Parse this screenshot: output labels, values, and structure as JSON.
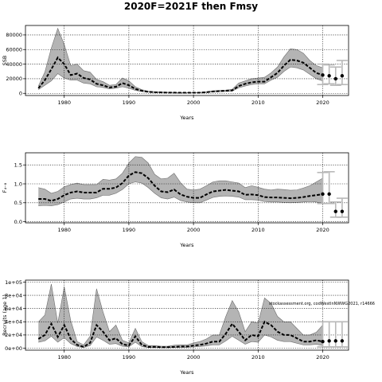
{
  "figure": {
    "title": "2020F=2021F then Fmsy",
    "annotation": "stockassessment.org, codWestlnNWWG2021, r14666"
  },
  "chart_data": [
    {
      "type": "line",
      "name": "ssb",
      "title": "",
      "xlabel": "Years",
      "ylabel": "SSB",
      "xlim": [
        1974,
        2024
      ],
      "ylim": [
        -3000,
        93000
      ],
      "xticks": [
        1980,
        1990,
        2000,
        2010,
        2020
      ],
      "yticks": [
        0,
        20000,
        40000,
        60000,
        80000
      ],
      "ytick_labels": [
        "0",
        "20000",
        "40000",
        "60000",
        "80000"
      ],
      "grid": "dotted",
      "x": [
        1976,
        1977,
        1978,
        1979,
        1980,
        1981,
        1982,
        1983,
        1984,
        1985,
        1986,
        1987,
        1988,
        1989,
        1990,
        1991,
        1992,
        1993,
        1994,
        1995,
        1996,
        1997,
        1998,
        1999,
        2000,
        2001,
        2002,
        2003,
        2004,
        2005,
        2006,
        2007,
        2008,
        2009,
        2010,
        2011,
        2012,
        2013,
        2014,
        2015,
        2016,
        2017,
        2018,
        2019,
        2020
      ],
      "estimate": [
        7000,
        18000,
        33000,
        49000,
        40000,
        25000,
        27000,
        21000,
        19000,
        13000,
        11000,
        8000,
        9000,
        14000,
        11000,
        6000,
        3500,
        2000,
        1500,
        1200,
        1000,
        900,
        800,
        800,
        800,
        900,
        1500,
        2500,
        3000,
        3500,
        4000,
        10000,
        13000,
        15000,
        16000,
        16000,
        22000,
        28000,
        38000,
        46000,
        45000,
        42000,
        35000,
        28000,
        25000
      ],
      "lower": [
        5000,
        11000,
        17000,
        27000,
        21000,
        18000,
        18000,
        14000,
        13000,
        9000,
        8000,
        6000,
        7000,
        9000,
        7000,
        4000,
        2500,
        1500,
        1000,
        900,
        800,
        700,
        700,
        700,
        700,
        700,
        1200,
        1800,
        2200,
        2500,
        3000,
        7500,
        10000,
        12000,
        13000,
        13000,
        18000,
        22000,
        30000,
        36000,
        35000,
        32000,
        26000,
        20000,
        17000
      ],
      "upper": [
        10000,
        29000,
        62000,
        89000,
        67000,
        38000,
        40000,
        31000,
        29000,
        19000,
        16000,
        11000,
        12000,
        21000,
        17000,
        9000,
        5000,
        3000,
        2300,
        1800,
        1500,
        1300,
        1100,
        1100,
        1100,
        1200,
        2000,
        3500,
        4000,
        4500,
        5500,
        14000,
        17000,
        20000,
        21000,
        22000,
        28000,
        36000,
        50000,
        61000,
        60000,
        55000,
        45000,
        38000,
        35000
      ],
      "forecast": {
        "years": [
          2021,
          2022,
          2023
        ],
        "median": [
          24000,
          20000,
          24000
        ],
        "lower": [
          13000,
          11000,
          12000
        ],
        "upper": [
          39000,
          36000,
          45000
        ]
      },
      "intervals": [
        {
          "x": 2020,
          "low": 12000,
          "high": 40000
        },
        {
          "x": 2021,
          "low": 13000,
          "high": 39000
        },
        {
          "x": 2022,
          "low": 11000,
          "high": 36000
        },
        {
          "x": 2023,
          "low": 12000,
          "high": 45000
        }
      ]
    },
    {
      "type": "line",
      "name": "fbar",
      "title": "",
      "xlabel": "Years",
      "ylabel": "F₄₋₈",
      "xlim": [
        1974,
        2024
      ],
      "ylim": [
        -0.03,
        1.82
      ],
      "xticks": [
        1980,
        1990,
        2000,
        2010,
        2020
      ],
      "yticks": [
        0,
        0.5,
        1.0,
        1.5
      ],
      "ytick_labels": [
        "0.0",
        "0.5",
        "1.0",
        "1.5"
      ],
      "grid": "dotted",
      "x": [
        1976,
        1977,
        1978,
        1979,
        1980,
        1981,
        1982,
        1983,
        1984,
        1985,
        1986,
        1987,
        1988,
        1989,
        1990,
        1991,
        1992,
        1993,
        1994,
        1995,
        1996,
        1997,
        1998,
        1999,
        2000,
        2001,
        2002,
        2003,
        2004,
        2005,
        2006,
        2007,
        2008,
        2009,
        2010,
        2011,
        2012,
        2013,
        2014,
        2015,
        2016,
        2017,
        2018,
        2019,
        2020
      ],
      "estimate": [
        0.6,
        0.6,
        0.55,
        0.6,
        0.7,
        0.77,
        0.8,
        0.77,
        0.77,
        0.77,
        0.87,
        0.87,
        0.9,
        1.02,
        1.22,
        1.31,
        1.28,
        1.15,
        0.95,
        0.8,
        0.78,
        0.85,
        0.72,
        0.66,
        0.63,
        0.63,
        0.72,
        0.8,
        0.82,
        0.84,
        0.82,
        0.8,
        0.71,
        0.72,
        0.7,
        0.65,
        0.64,
        0.64,
        0.63,
        0.62,
        0.63,
        0.65,
        0.68,
        0.7,
        0.73
      ],
      "lower": [
        0.42,
        0.43,
        0.42,
        0.45,
        0.52,
        0.6,
        0.62,
        0.6,
        0.6,
        0.63,
        0.7,
        0.7,
        0.75,
        0.85,
        1.0,
        1.05,
        1.02,
        0.9,
        0.75,
        0.63,
        0.6,
        0.65,
        0.56,
        0.52,
        0.5,
        0.5,
        0.57,
        0.64,
        0.67,
        0.68,
        0.67,
        0.65,
        0.58,
        0.58,
        0.57,
        0.53,
        0.52,
        0.52,
        0.51,
        0.5,
        0.51,
        0.52,
        0.53,
        0.52,
        0.48
      ],
      "upper": [
        0.9,
        0.86,
        0.75,
        0.8,
        0.92,
        0.98,
        1.02,
        0.98,
        0.98,
        0.98,
        1.12,
        1.1,
        1.13,
        1.28,
        1.55,
        1.72,
        1.7,
        1.55,
        1.25,
        1.13,
        1.15,
        1.28,
        1.03,
        0.86,
        0.84,
        0.86,
        0.95,
        1.05,
        1.08,
        1.08,
        1.05,
        1.02,
        0.9,
        0.95,
        0.91,
        0.86,
        0.84,
        0.86,
        0.85,
        0.83,
        0.84,
        0.89,
        0.95,
        1.05,
        1.15
      ],
      "forecast": {
        "years": [
          2021,
          2022,
          2023
        ],
        "median": [
          0.73,
          0.27,
          0.27
        ],
        "lower": [
          0.48,
          0.12,
          0.12
        ],
        "upper": [
          1.32,
          0.52,
          0.62
        ]
      },
      "intervals": [
        {
          "x": 2020,
          "low": 0.48,
          "high": 1.3
        },
        {
          "x": 2021,
          "low": 0.48,
          "high": 1.32
        },
        {
          "x": 2022,
          "low": 0.12,
          "high": 0.52
        },
        {
          "x": 2023,
          "low": 0.12,
          "high": 0.62
        }
      ]
    },
    {
      "type": "line",
      "name": "recruits",
      "title": "",
      "xlabel": "Years",
      "ylabel": "Recruits (age 1)",
      "xlim": [
        1974,
        2024
      ],
      "ylim": [
        -3000,
        103000
      ],
      "xticks": [
        1980,
        1990,
        2000,
        2010,
        2020
      ],
      "yticks": [
        0,
        20000,
        40000,
        60000,
        80000,
        100000
      ],
      "ytick_labels": [
        "0e+00",
        "2e+04",
        "4e+04",
        "6e+04",
        "8e+04",
        "1e+05"
      ],
      "grid": "dotted",
      "x": [
        1976,
        1977,
        1978,
        1979,
        1980,
        1981,
        1982,
        1983,
        1984,
        1985,
        1986,
        1987,
        1988,
        1989,
        1990,
        1991,
        1992,
        1993,
        1994,
        1995,
        1996,
        1997,
        1998,
        1999,
        2000,
        2001,
        2002,
        2003,
        2004,
        2005,
        2006,
        2007,
        2008,
        2009,
        2010,
        2011,
        2012,
        2013,
        2014,
        2015,
        2016,
        2017,
        2018,
        2019,
        2020
      ],
      "estimate": [
        14000,
        20000,
        37000,
        17000,
        35000,
        14000,
        5000,
        2000,
        8000,
        35000,
        25000,
        12000,
        15000,
        6000,
        4000,
        18000,
        5000,
        2000,
        2000,
        1500,
        1500,
        2000,
        2500,
        2500,
        4000,
        5000,
        7000,
        10000,
        10000,
        22000,
        37000,
        25000,
        12000,
        20000,
        18000,
        40000,
        35000,
        25000,
        20000,
        20000,
        15000,
        10000,
        10000,
        12000,
        10000
      ],
      "lower": [
        9000,
        11000,
        18000,
        9000,
        16000,
        7000,
        2500,
        1000,
        4000,
        17000,
        12000,
        6000,
        7000,
        3000,
        2000,
        9000,
        2500,
        1000,
        1000,
        800,
        800,
        1000,
        1200,
        1200,
        2000,
        2500,
        3500,
        5000,
        5000,
        11000,
        18000,
        12000,
        6000,
        10000,
        9000,
        20000,
        17000,
        12000,
        10000,
        10000,
        7500,
        5000,
        5000,
        6000,
        4000
      ],
      "upper": [
        40000,
        50000,
        97000,
        38000,
        93000,
        42000,
        10000,
        5000,
        18000,
        90000,
        55000,
        25000,
        35000,
        12000,
        8000,
        30000,
        10000,
        4000,
        4000,
        3000,
        3000,
        4500,
        5000,
        5000,
        8000,
        10000,
        14000,
        20000,
        20000,
        48000,
        72000,
        55000,
        25000,
        40000,
        38000,
        76000,
        68000,
        48000,
        40000,
        40000,
        30000,
        20000,
        20000,
        24000,
        35000
      ],
      "forecast": {
        "years": [
          2021,
          2022,
          2023
        ],
        "median": [
          11000,
          11000,
          11000
        ],
        "lower": [
          2000,
          2000,
          2000
        ],
        "upper": [
          40000,
          40000,
          40000
        ]
      },
      "intervals": [
        {
          "x": 2020,
          "low": 2000,
          "high": 40000
        },
        {
          "x": 2021,
          "low": 2000,
          "high": 40000
        },
        {
          "x": 2022,
          "low": 2000,
          "high": 40000
        },
        {
          "x": 2023,
          "low": 2000,
          "high": 40000
        }
      ]
    }
  ]
}
